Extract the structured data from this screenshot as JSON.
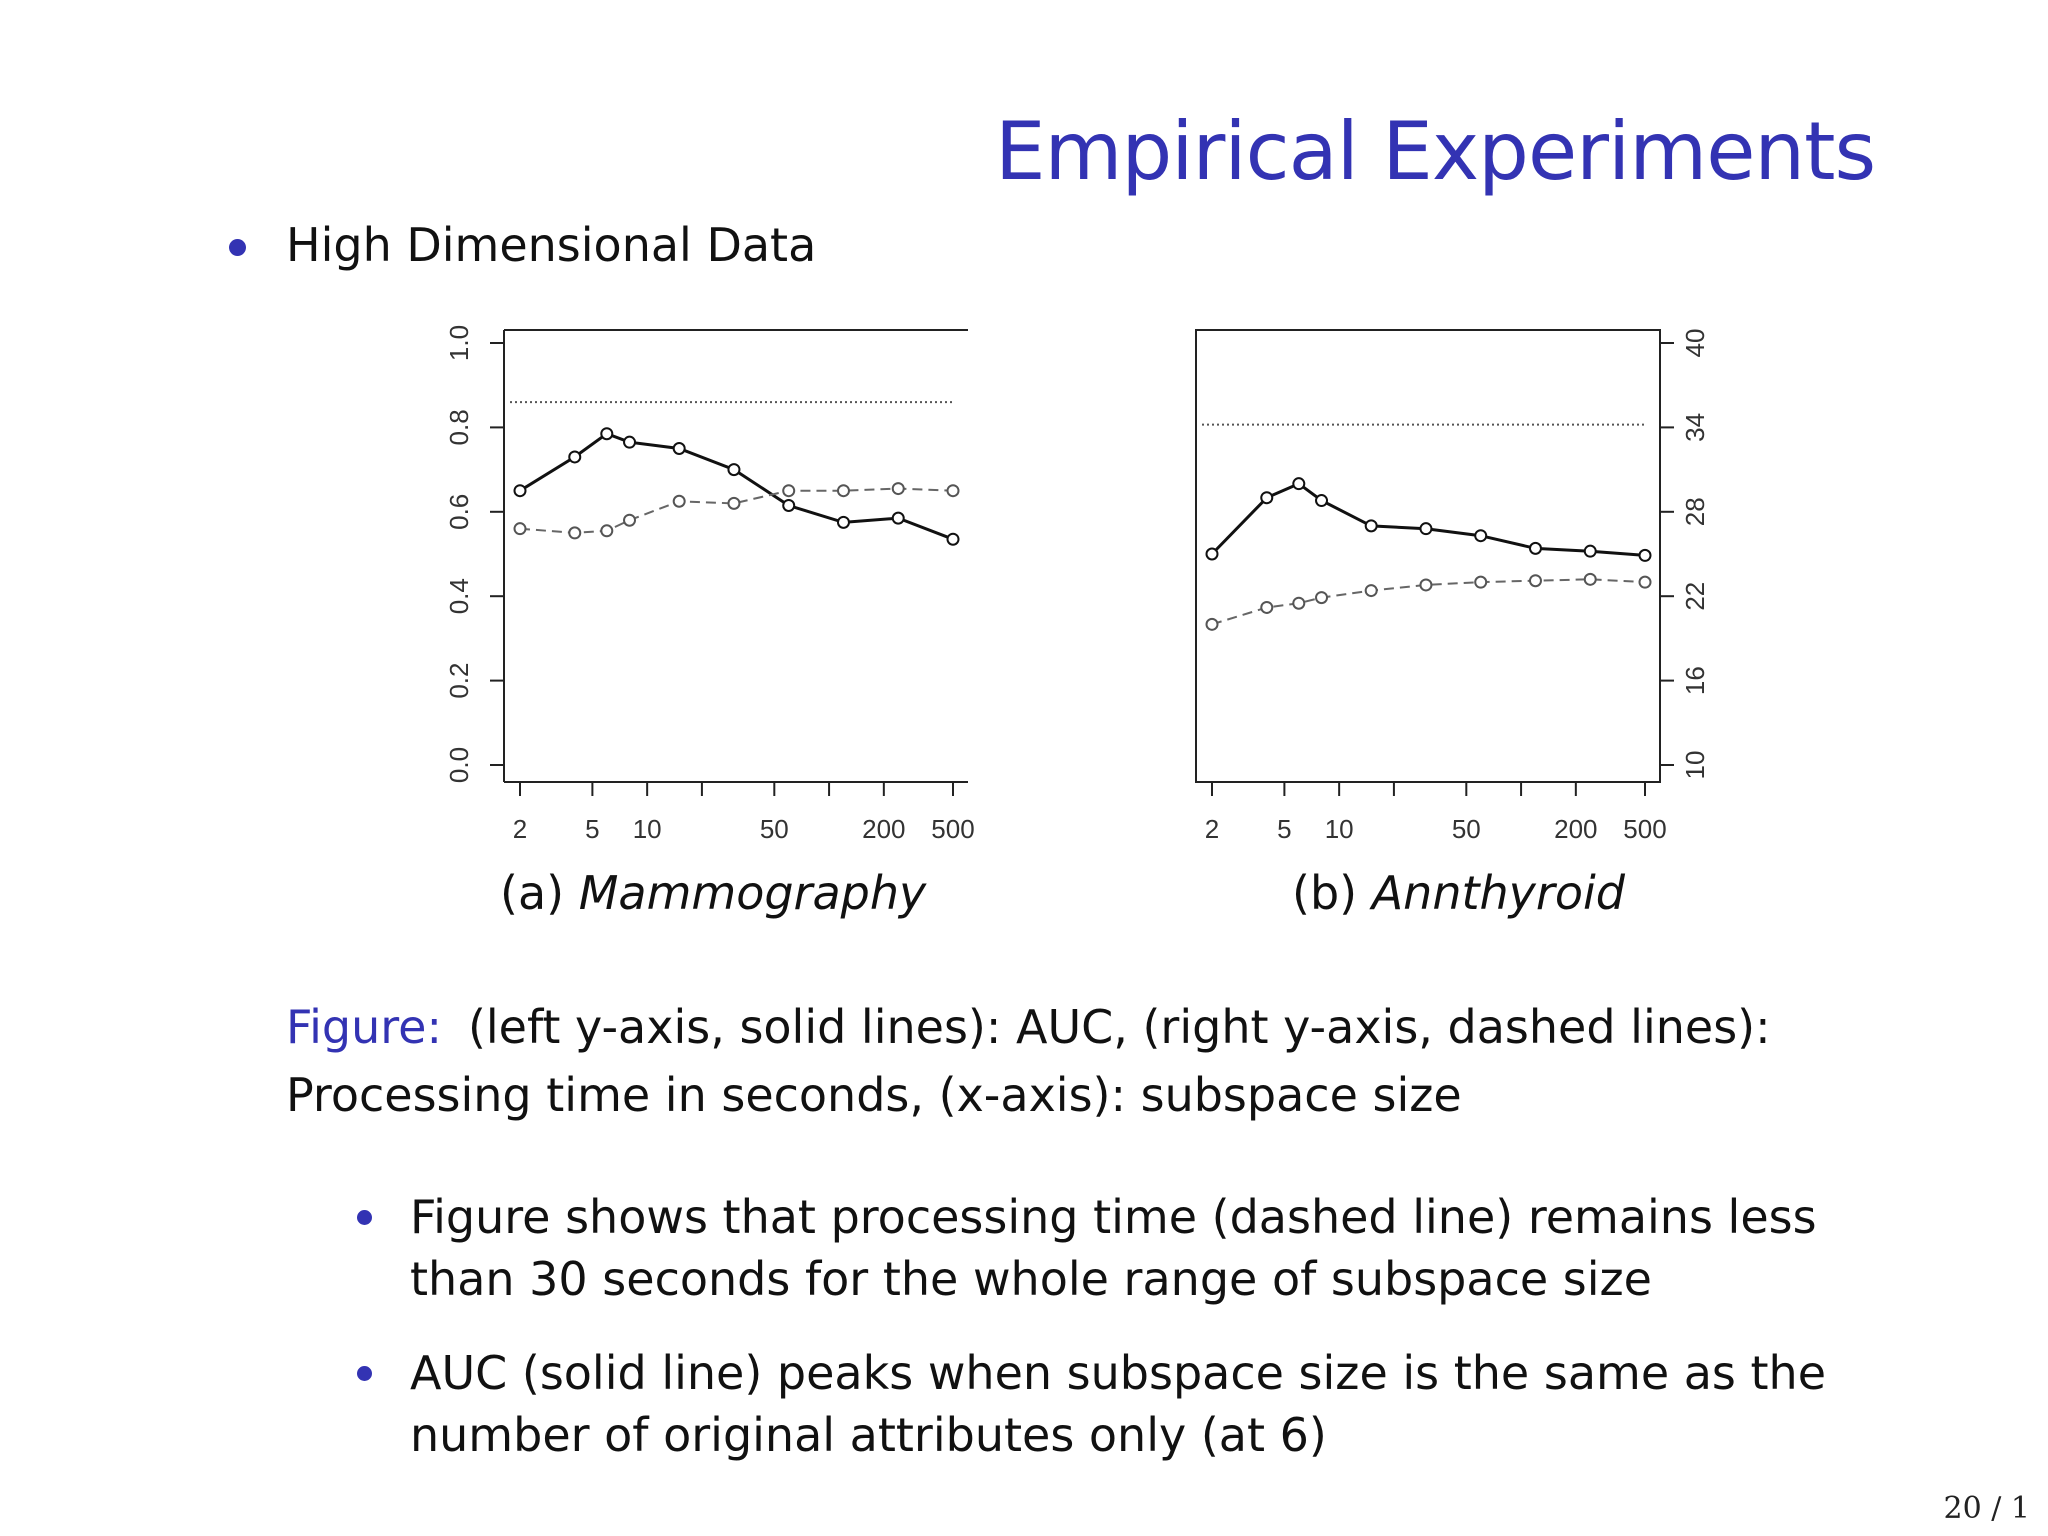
{
  "slide": {
    "title": "Empirical Experiments",
    "bullet": "High Dimensional Data",
    "figure_label": "Figure:",
    "figure_text": "(left y-axis, solid lines): AUC, (right y-axis, dashed lines): Processing time in seconds, (x-axis): subspace size",
    "bullets": [
      "Figure shows that processing time (dashed line) remains less than 30 seconds for the whole range of subspace size",
      "AUC (solid line) peaks when subspace size is the same as the number of original attributes only (at 6)"
    ],
    "page_number": "20 / 1"
  },
  "chart_data": [
    {
      "type": "line",
      "caption_prefix": "(a)",
      "caption_name": "Mammography",
      "x_scale": "log",
      "x_ticks": [
        "2",
        "5",
        "10",
        "50",
        "200",
        "500"
      ],
      "y_axis": "left",
      "y_ticks": [
        "0.0",
        "0.2",
        "0.4",
        "0.6",
        "0.8",
        "1.0"
      ],
      "ylim": [
        0,
        1.0
      ],
      "reference_line": 0.86,
      "series": [
        {
          "style": "solid",
          "x": [
            2,
            4,
            6,
            8,
            15,
            30,
            60,
            120,
            240,
            480
          ],
          "y": [
            0.65,
            0.73,
            0.785,
            0.765,
            0.75,
            0.7,
            0.615,
            0.575,
            0.585,
            0.535
          ]
        },
        {
          "style": "dashed",
          "x": [
            2,
            4,
            6,
            8,
            15,
            30,
            60,
            120,
            240,
            480
          ],
          "y": [
            0.56,
            0.55,
            0.555,
            0.58,
            0.625,
            0.62,
            0.65,
            0.65,
            0.655,
            0.65
          ]
        }
      ]
    },
    {
      "type": "line",
      "caption_prefix": "(b)",
      "caption_name": "Annthyroid",
      "x_scale": "log",
      "x_ticks": [
        "2",
        "5",
        "10",
        "50",
        "200",
        "500"
      ],
      "y_axis": "right",
      "y_ticks": [
        "10",
        "16",
        "22",
        "28",
        "34",
        "40"
      ],
      "ylim": [
        10,
        40
      ],
      "reference_line": 34.2,
      "series": [
        {
          "style": "solid",
          "x": [
            2,
            4,
            6,
            8,
            15,
            30,
            60,
            120,
            240,
            480
          ],
          "y": [
            25,
            29,
            30,
            28.8,
            27,
            26.8,
            26.3,
            25.4,
            25.2,
            24.9
          ]
        },
        {
          "style": "dashed",
          "x": [
            2,
            4,
            6,
            8,
            15,
            30,
            60,
            120,
            240,
            480
          ],
          "y": [
            20,
            21.2,
            21.5,
            21.9,
            22.4,
            22.8,
            23,
            23.1,
            23.2,
            23
          ]
        }
      ]
    }
  ]
}
